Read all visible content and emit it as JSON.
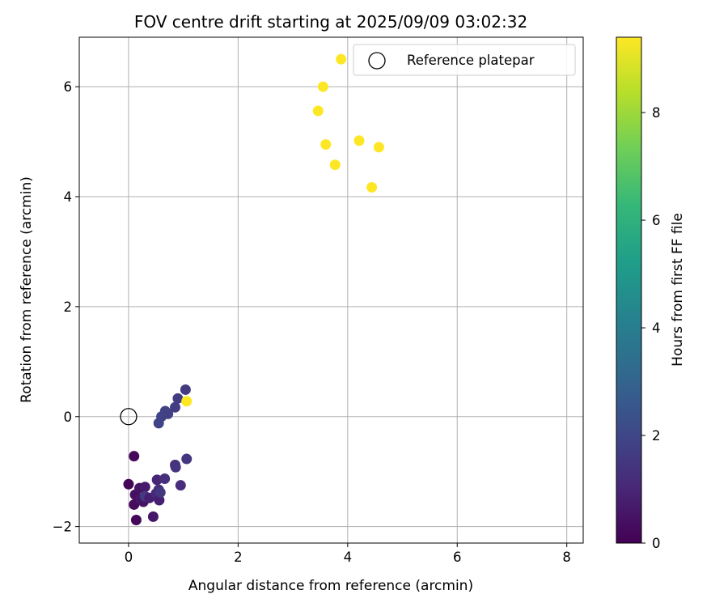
{
  "chart_data": {
    "type": "scatter",
    "title": "FOV centre drift starting at 2025/09/09 03:02:32",
    "xlabel": "Angular distance from reference (arcmin)",
    "ylabel": "Rotation from reference (arcmin)",
    "xlim": [
      -0.9,
      8.3
    ],
    "ylim": [
      -2.3,
      6.9
    ],
    "xticks": [
      0,
      2,
      4,
      6,
      8
    ],
    "yticks": [
      -2,
      0,
      2,
      4,
      6
    ],
    "grid": true,
    "legend": {
      "position": "top-right",
      "entries": [
        "Reference platepar"
      ]
    },
    "reference_point": {
      "x": 0,
      "y": 0,
      "label": "Reference platepar"
    },
    "colorbar": {
      "label": "Hours from first FF file",
      "min": 0,
      "max": 9.4,
      "ticks": [
        0,
        2,
        4,
        6,
        8
      ],
      "colormap": [
        "#440154",
        "#482878",
        "#3e4a89",
        "#31688e",
        "#26828e",
        "#1f9e89",
        "#35b779",
        "#6ece58",
        "#b5de2b",
        "#fde725"
      ]
    },
    "points": [
      {
        "x": 0.0,
        "y": -1.23,
        "h": 0.1
      },
      {
        "x": 0.1,
        "y": -0.72,
        "h": 0.2
      },
      {
        "x": 0.12,
        "y": -1.42,
        "h": 0.4
      },
      {
        "x": 0.1,
        "y": -1.6,
        "h": 0.3
      },
      {
        "x": 0.14,
        "y": -1.88,
        "h": 0.2
      },
      {
        "x": 0.2,
        "y": -1.3,
        "h": 0.5
      },
      {
        "x": 0.22,
        "y": -1.5,
        "h": 0.6
      },
      {
        "x": 0.27,
        "y": -1.55,
        "h": 0.5
      },
      {
        "x": 0.3,
        "y": -1.28,
        "h": 0.7
      },
      {
        "x": 0.3,
        "y": -1.45,
        "h": 1.6
      },
      {
        "x": 0.38,
        "y": -1.48,
        "h": 0.8
      },
      {
        "x": 0.45,
        "y": -1.82,
        "h": 0.6
      },
      {
        "x": 0.5,
        "y": -1.4,
        "h": 1.1
      },
      {
        "x": 0.52,
        "y": -1.15,
        "h": 1.0
      },
      {
        "x": 0.55,
        "y": -1.33,
        "h": 1.2
      },
      {
        "x": 0.56,
        "y": -1.52,
        "h": 0.8
      },
      {
        "x": 0.58,
        "y": -1.38,
        "h": 1.5
      },
      {
        "x": 0.66,
        "y": -1.13,
        "h": 1.3
      },
      {
        "x": 0.85,
        "y": -0.88,
        "h": 1.3
      },
      {
        "x": 0.86,
        "y": -0.92,
        "h": 1.4
      },
      {
        "x": 0.95,
        "y": -1.25,
        "h": 1.2
      },
      {
        "x": 1.06,
        "y": -0.77,
        "h": 1.5
      },
      {
        "x": 0.55,
        "y": -0.12,
        "h": 1.9
      },
      {
        "x": 0.6,
        "y": 0.0,
        "h": 1.9
      },
      {
        "x": 0.67,
        "y": 0.1,
        "h": 1.8
      },
      {
        "x": 0.72,
        "y": 0.05,
        "h": 1.8
      },
      {
        "x": 0.85,
        "y": 0.17,
        "h": 1.7
      },
      {
        "x": 0.9,
        "y": 0.33,
        "h": 1.7
      },
      {
        "x": 1.04,
        "y": 0.49,
        "h": 1.6
      },
      {
        "x": 1.06,
        "y": 0.28,
        "h": 9.4
      },
      {
        "x": 3.88,
        "y": 6.5,
        "h": 9.4
      },
      {
        "x": 3.55,
        "y": 6.0,
        "h": 9.4
      },
      {
        "x": 3.46,
        "y": 5.56,
        "h": 9.4
      },
      {
        "x": 3.6,
        "y": 4.95,
        "h": 9.4
      },
      {
        "x": 4.21,
        "y": 5.02,
        "h": 9.4
      },
      {
        "x": 4.57,
        "y": 4.9,
        "h": 9.4
      },
      {
        "x": 3.77,
        "y": 4.58,
        "h": 9.4
      },
      {
        "x": 4.44,
        "y": 4.17,
        "h": 9.4
      }
    ]
  }
}
